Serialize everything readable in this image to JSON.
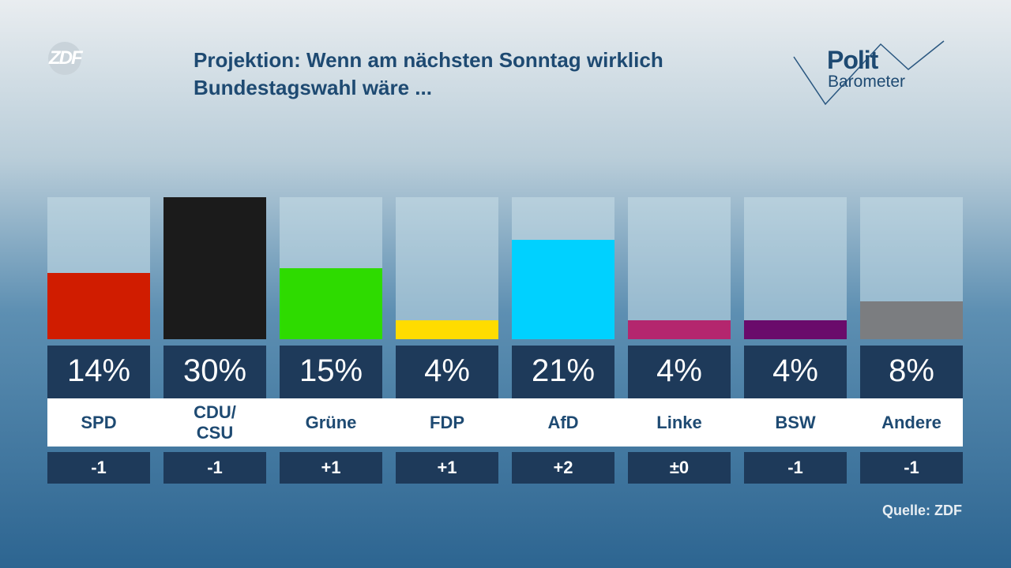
{
  "chart_data": {
    "type": "bar",
    "title": "Projektion: Wenn am nächsten Sonntag wirklich Bundestagswahl wäre ...",
    "categories": [
      "SPD",
      "CDU/\nCSU",
      "Grüne",
      "FDP",
      "AfD",
      "Linke",
      "BSW",
      "Andere"
    ],
    "values": [
      14,
      30,
      15,
      4,
      21,
      4,
      4,
      8
    ],
    "value_labels": [
      "14%",
      "30%",
      "15%",
      "4%",
      "21%",
      "4%",
      "4%",
      "8%"
    ],
    "colors": [
      "#d01c00",
      "#1b1b1b",
      "#2edb00",
      "#ffdc00",
      "#00d1ff",
      "#b4266e",
      "#6a0b6b",
      "#7b7d80"
    ],
    "changes": [
      "-1",
      "-1",
      "+1",
      "+1",
      "+2",
      "±0",
      "-1",
      "-1"
    ],
    "ylim": [
      0,
      30
    ],
    "source": "Quelle: ZDF"
  },
  "branding": {
    "broadcaster": "ZDF",
    "show_line1": "Polit",
    "show_line2": "Barometer"
  }
}
